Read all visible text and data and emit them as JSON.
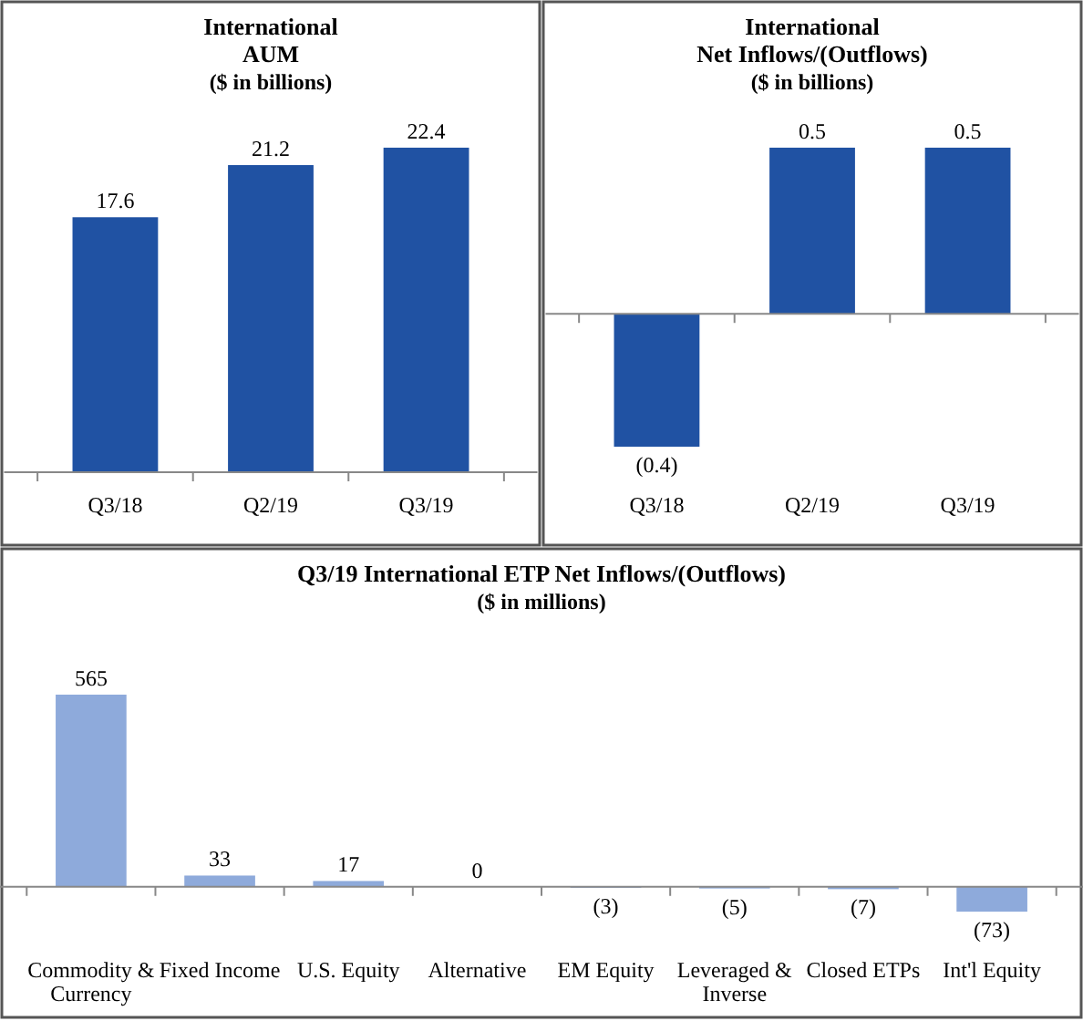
{
  "chart_data": [
    {
      "type": "bar",
      "title": "International\nAUM",
      "subtitle": "($ in billions)",
      "categories": [
        "Q3/18",
        "Q2/19",
        "Q3/19"
      ],
      "values": [
        17.6,
        21.2,
        22.4
      ],
      "color": "#2052a3",
      "value_labels": [
        "17.6",
        "21.2",
        "22.4"
      ]
    },
    {
      "type": "bar",
      "title": "International\nNet Inflows/(Outflows)",
      "subtitle": "($ in billions)",
      "categories": [
        "Q3/18",
        "Q2/19",
        "Q3/19"
      ],
      "values": [
        -0.4,
        0.5,
        0.5
      ],
      "color": "#2052a3",
      "value_labels": [
        "(0.4)",
        "0.5",
        "0.5"
      ]
    },
    {
      "type": "bar",
      "title": "Q3/19 International ETP Net Inflows/(Outflows)",
      "subtitle": "($ in millions)",
      "categories": [
        "Commodity & Currency",
        "Fixed Income",
        "U.S. Equity",
        "Alternative",
        "EM Equity",
        "Leveraged & Inverse",
        "Closed ETPs",
        "Int'l Equity"
      ],
      "values": [
        565,
        33,
        17,
        0,
        -3,
        -5,
        -7,
        -73
      ],
      "color": "#8eaadb",
      "value_labels": [
        "565",
        "33",
        "17",
        "0",
        "(3)",
        "(5)",
        "(7)",
        "(73)"
      ]
    }
  ]
}
